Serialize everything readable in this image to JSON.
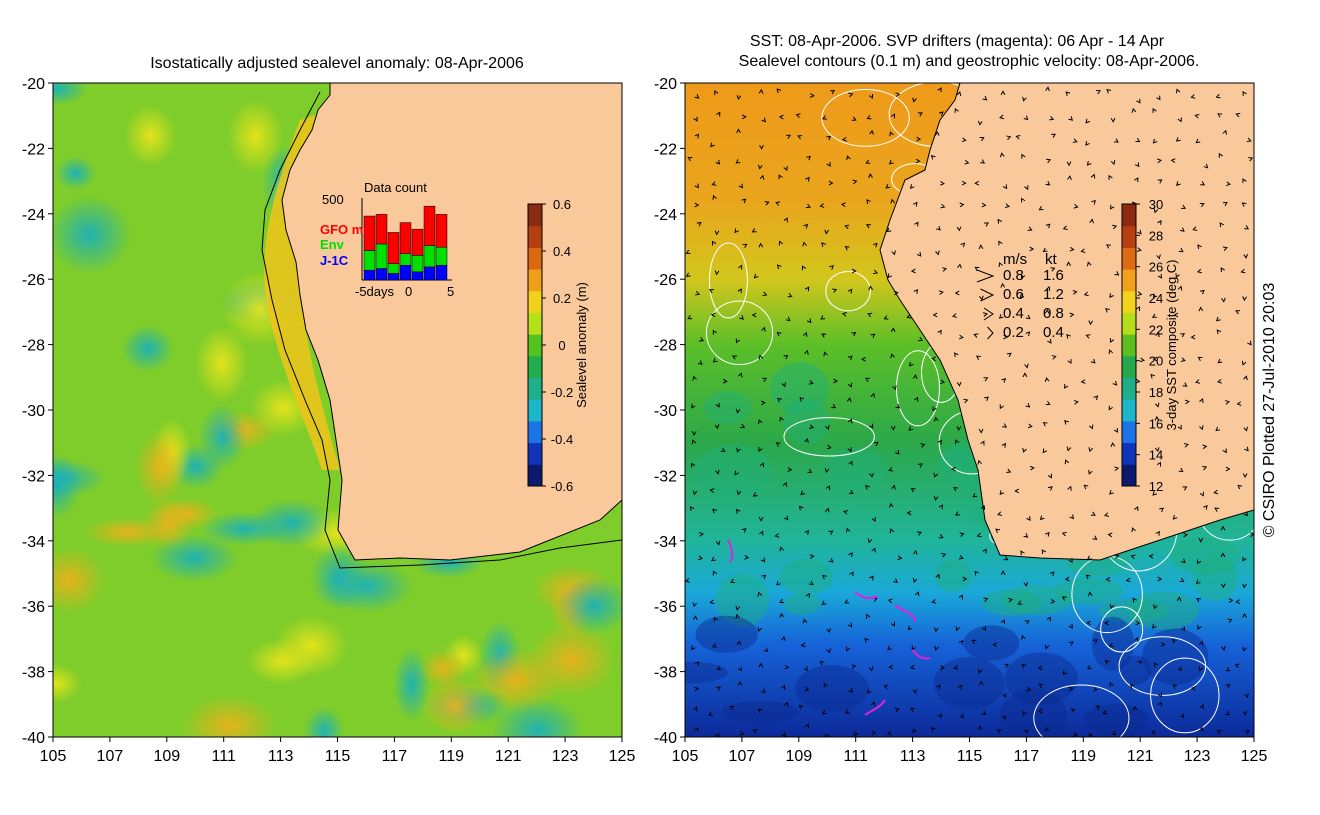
{
  "left_panel": {
    "title": "Isostatically adjusted sealevel anomaly: 08-Apr-2006",
    "colorbar": {
      "label": "Sealevel anomaly (m)",
      "ticks": [
        "0.6",
        "0.4",
        "0.2",
        "0",
        "-0.2",
        "-0.4",
        "-0.6"
      ],
      "colors": [
        "#0b1a6e",
        "#1034b8",
        "#1a74e6",
        "#1bb6c9",
        "#1fb08a",
        "#1fae4c",
        "#54c21f",
        "#b6e01a",
        "#f1d21a",
        "#f0a018",
        "#d96a12",
        "#b3400e",
        "#8a2a10"
      ]
    },
    "inset": {
      "title": "Data count",
      "ymax_label": "500",
      "x_labels": [
        "-5days",
        "0",
        "5"
      ],
      "legend": [
        {
          "label": "GFO mm",
          "color": "#ff0000"
        },
        {
          "label": "Env",
          "color": "#00e000"
        },
        {
          "label": "J-1C",
          "color": "#0000ff"
        }
      ],
      "counts": [
        {
          "jason": 60,
          "env": 120,
          "gfo": 210
        },
        {
          "jason": 70,
          "env": 150,
          "gfo": 180
        },
        {
          "jason": 40,
          "env": 60,
          "gfo": 190
        },
        {
          "jason": 90,
          "env": 70,
          "gfo": 190
        },
        {
          "jason": 50,
          "env": 100,
          "gfo": 160
        },
        {
          "jason": 80,
          "env": 130,
          "gfo": 240
        },
        {
          "jason": 90,
          "env": 110,
          "gfo": 200
        }
      ]
    }
  },
  "right_panel": {
    "title_line1": "SST: 08-Apr-2006. SVP drifters (magenta): 06 Apr - 14 Apr",
    "title_line2": "Sealevel contours (0.1 m) and geostrophic velocity: 08-Apr-2006.",
    "colorbar": {
      "label": "3-day SST composite (deg C)",
      "ticks": [
        "30",
        "28",
        "26",
        "24",
        "22",
        "20",
        "18",
        "16",
        "14",
        "12"
      ],
      "colors": [
        "#0b1a6e",
        "#1034b8",
        "#1a74e6",
        "#1bb6c9",
        "#1fae8a",
        "#23a84c",
        "#5cbf1f",
        "#b6dd1a",
        "#f2d21a",
        "#f0a01a",
        "#de6a14",
        "#b84010",
        "#8a2a10"
      ]
    },
    "velocity_legend": {
      "header_ms": "m/s",
      "header_kt": "kt",
      "rows": [
        {
          "ms": "0.8",
          "kt": "1.6"
        },
        {
          "ms": "0.6",
          "kt": "1.2"
        },
        {
          "ms": "0.4",
          "kt": "0.8"
        },
        {
          "ms": "0.2",
          "kt": "0.4"
        }
      ]
    }
  },
  "axes": {
    "y_ticks": [
      "-20",
      "-22",
      "-24",
      "-26",
      "-28",
      "-30",
      "-32",
      "-34",
      "-36",
      "-38",
      "-40"
    ],
    "x_ticks": [
      "105",
      "107",
      "109",
      "111",
      "113",
      "115",
      "117",
      "119",
      "121",
      "123",
      "125"
    ]
  },
  "colors": {
    "land": "#f9c99b",
    "coast": "#000000",
    "drifter": "#e020e0",
    "contour": "#ffffff"
  },
  "credit": "© CSIRO Plotted 27-Jul-2010 20:03"
}
